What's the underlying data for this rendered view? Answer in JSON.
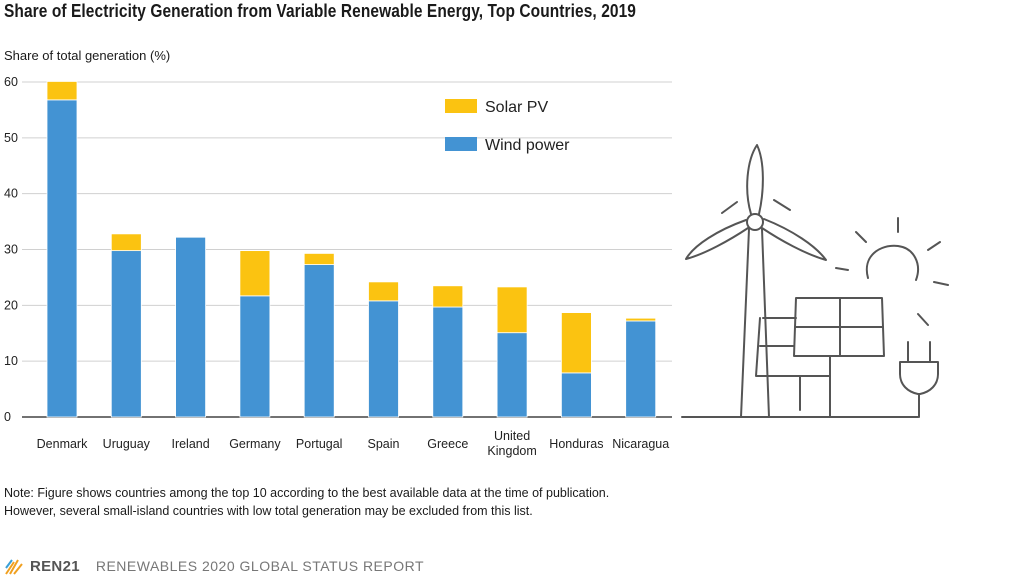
{
  "title": "Share of Electricity Generation from Variable Renewable Energy, Top Countries, 2019",
  "note_line1": "Note: Figure shows countries among the top 10 according to the best available data at the time of publication.",
  "note_line2": "However, several small-island countries with low total generation may be excluded from this list.",
  "footer": {
    "brand": "REN21",
    "report": "RENEWABLES 2020 GLOBAL STATUS REPORT"
  },
  "colors": {
    "wind": "#4393d3",
    "solar": "#fbc311",
    "grid": "#d0d0d0",
    "icon": "#555555"
  },
  "chart_data": {
    "type": "bar",
    "stacked": true,
    "title": "Share of Electricity Generation from Variable Renewable Energy, Top Countries, 2019",
    "xlabel": "",
    "ylabel": "Share of total generation (%)",
    "ylim": [
      0,
      60
    ],
    "yticks": [
      0,
      10,
      20,
      30,
      40,
      50,
      60
    ],
    "grid": true,
    "legend_position": "top-right",
    "categories": [
      [
        "Denmark"
      ],
      [
        "Uruguay"
      ],
      [
        "Ireland"
      ],
      [
        "Germany"
      ],
      [
        "Portugal"
      ],
      [
        "Spain"
      ],
      [
        "Greece"
      ],
      [
        "United",
        "Kingdom"
      ],
      [
        "Honduras"
      ],
      [
        "Nicaragua"
      ]
    ],
    "series": [
      {
        "name": "Wind power",
        "values": [
          56.8,
          29.8,
          32.2,
          21.7,
          27.3,
          20.8,
          19.7,
          15.1,
          7.9,
          17.2
        ]
      },
      {
        "name": "Solar PV",
        "values": [
          3.3,
          3.0,
          0,
          8.1,
          2.0,
          3.4,
          3.8,
          8.2,
          10.8,
          0.5
        ]
      }
    ],
    "legend": [
      {
        "name": "Solar PV"
      },
      {
        "name": "Wind power"
      }
    ]
  }
}
